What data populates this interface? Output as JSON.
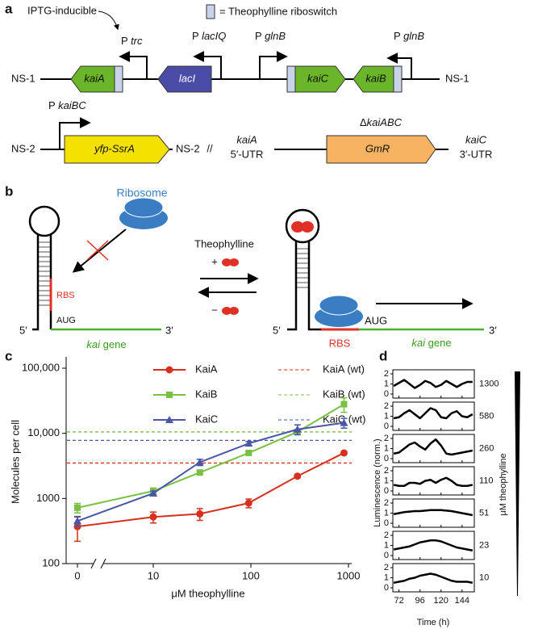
{
  "panel_labels": [
    "a",
    "b",
    "c",
    "d"
  ],
  "panel_a": {
    "iptg_note": "IPTG-inducible",
    "riboswitch_key": "= Theophylline riboswitch",
    "promoters": [
      {
        "prefix": "P",
        "name": "trc"
      },
      {
        "prefix": "P",
        "name": "lacIQ"
      },
      {
        "prefix": "P",
        "name": "glnB"
      },
      {
        "prefix": "P",
        "name": "glnB"
      },
      {
        "prefix": "P",
        "name": "kaiBC"
      }
    ],
    "genes": [
      "kaiA",
      "lacI",
      "kaiC",
      "kaiB",
      "yfp-SsrA",
      "GmR"
    ],
    "sites": [
      "NS-1",
      "NS-1",
      "NS-2",
      "NS-2"
    ],
    "break": "//",
    "deletion": {
      "prefix": "Δ",
      "name": "kaiABC"
    },
    "left_flank": {
      "gene": "kaiA",
      "utr": "5′-UTR"
    },
    "right_flank": {
      "gene": "kaiC",
      "utr": "3′-UTR"
    }
  },
  "panel_b": {
    "ribosome": "Ribosome",
    "ligand": "Theophylline",
    "plus": "+",
    "minus": "−",
    "left": {
      "rbs": "RBS",
      "start": "AUG",
      "five": "5′",
      "three": "3′",
      "gene": "kai",
      "gene_suffix": "gene"
    },
    "right": {
      "rbs": "RBS",
      "start": "AUG",
      "five": "5′",
      "three": "3′",
      "gene": "kai",
      "gene_suffix": "gene"
    }
  },
  "panel_d": {
    "y_label": "Luminescence (norm.)",
    "x_label": "Time (h)",
    "side_label": "μM theophylline"
  },
  "chart_data": [
    {
      "type": "line",
      "y_label": "Molecules per cell",
      "x_label": "μM theophylline",
      "xscale": "log",
      "yscale": "log",
      "x": [
        0,
        10,
        30,
        95,
        300,
        900
      ],
      "xlim": [
        0,
        1000
      ],
      "xticks": [
        0,
        10,
        100,
        1000
      ],
      "ylim": [
        100,
        100000
      ],
      "yticks": [
        100,
        1000,
        {
          "value": 10000,
          "label": "10,000"
        },
        {
          "value": 100000,
          "label": "100,000"
        }
      ],
      "series": [
        {
          "name": "KaiA",
          "color": "#d7301f",
          "marker": "circle",
          "values": [
            370,
            520,
            580,
            850,
            2200,
            5000
          ],
          "errors": [
            150,
            100,
            120,
            130,
            100,
            200
          ]
        },
        {
          "name": "KaiB",
          "color": "#7ac143",
          "marker": "square",
          "values": [
            720,
            1300,
            2500,
            5000,
            10500,
            28000
          ],
          "errors": [
            120,
            150,
            150,
            300,
            800,
            7000
          ]
        },
        {
          "name": "KaiC",
          "color": "#4a56a6",
          "marker": "triangle",
          "values": [
            450,
            1200,
            3600,
            7000,
            11500,
            14500
          ],
          "errors": [
            80,
            100,
            400,
            500,
            2000,
            2500
          ]
        }
      ],
      "reference_lines": [
        {
          "name": "KaiA (wt)",
          "color": "#d7301f",
          "value": 3500
        },
        {
          "name": "KaiB (wt)",
          "color": "#7ac143",
          "value": 10500
        },
        {
          "name": "KaiC (wt)",
          "color": "#4a56a6",
          "value": 7800
        }
      ]
    },
    {
      "type": "line",
      "label": "1300",
      "color": "#000000",
      "x": [
        66,
        72,
        78,
        84,
        90,
        96,
        102,
        108,
        114,
        120,
        126,
        132,
        138,
        144,
        150,
        156
      ],
      "values": [
        0.8,
        1.1,
        1.4,
        1.0,
        0.6,
        0.9,
        1.3,
        1.1,
        0.7,
        0.9,
        1.3,
        1.0,
        0.7,
        1.0,
        1.2,
        1.2
      ],
      "xlim": [
        65,
        158
      ],
      "xticks": [
        72,
        96,
        120,
        144
      ],
      "ylim": [
        -0.4,
        2.4
      ],
      "yticks": [
        0,
        1,
        2
      ]
    },
    {
      "type": "line",
      "label": "580",
      "color": "#000000",
      "x": [
        66,
        72,
        78,
        84,
        90,
        96,
        102,
        108,
        114,
        120,
        126,
        132,
        138,
        144,
        150,
        156
      ],
      "values": [
        0.8,
        0.9,
        1.3,
        1.6,
        1.2,
        0.8,
        1.3,
        1.8,
        1.6,
        0.9,
        0.8,
        1.3,
        1.5,
        1.0,
        0.9,
        1.2
      ],
      "xlim": [
        65,
        158
      ],
      "xticks": [
        72,
        96,
        120,
        144
      ],
      "ylim": [
        -0.4,
        2.4
      ],
      "yticks": [
        0,
        1,
        2
      ]
    },
    {
      "type": "line",
      "label": "260",
      "color": "#000000",
      "x": [
        66,
        72,
        78,
        84,
        90,
        96,
        102,
        108,
        114,
        120,
        126,
        132,
        138,
        144,
        150,
        156
      ],
      "values": [
        0.5,
        0.6,
        1.0,
        1.4,
        1.6,
        1.2,
        0.9,
        1.5,
        1.9,
        1.3,
        0.5,
        0.4,
        0.5,
        0.6,
        0.7,
        0.8
      ],
      "xlim": [
        65,
        158
      ],
      "xticks": [
        72,
        96,
        120,
        144
      ],
      "ylim": [
        -0.4,
        2.4
      ],
      "yticks": [
        0,
        1,
        2
      ]
    },
    {
      "type": "line",
      "label": "110",
      "color": "#000000",
      "x": [
        66,
        72,
        78,
        84,
        90,
        96,
        102,
        108,
        114,
        120,
        126,
        132,
        138,
        144,
        150,
        156
      ],
      "values": [
        0.6,
        0.5,
        0.5,
        0.8,
        0.8,
        0.7,
        1.0,
        1.1,
        0.8,
        1.1,
        1.3,
        1.0,
        0.6,
        0.5,
        0.5,
        0.6
      ],
      "xlim": [
        65,
        158
      ],
      "xticks": [
        72,
        96,
        120,
        144
      ],
      "ylim": [
        -0.4,
        2.4
      ],
      "yticks": [
        0,
        1,
        2
      ]
    },
    {
      "type": "line",
      "label": "51",
      "color": "#000000",
      "x": [
        66,
        72,
        78,
        84,
        90,
        96,
        102,
        108,
        114,
        120,
        126,
        132,
        138,
        144,
        150,
        156
      ],
      "values": [
        0.9,
        1.0,
        1.1,
        1.15,
        1.2,
        1.2,
        1.25,
        1.3,
        1.3,
        1.3,
        1.25,
        1.2,
        1.1,
        1.0,
        0.9,
        0.8
      ],
      "xlim": [
        65,
        158
      ],
      "xticks": [
        72,
        96,
        120,
        144
      ],
      "ylim": [
        -0.4,
        2.4
      ],
      "yticks": [
        0,
        1,
        2
      ]
    },
    {
      "type": "line",
      "label": "23",
      "color": "#000000",
      "x": [
        66,
        72,
        78,
        84,
        90,
        96,
        102,
        108,
        114,
        120,
        126,
        132,
        138,
        144,
        150,
        156
      ],
      "values": [
        0.6,
        0.7,
        0.8,
        0.9,
        1.1,
        1.3,
        1.4,
        1.5,
        1.5,
        1.4,
        1.2,
        1.0,
        0.8,
        0.7,
        0.6,
        0.5
      ],
      "xlim": [
        65,
        158
      ],
      "xticks": [
        72,
        96,
        120,
        144
      ],
      "ylim": [
        -0.4,
        2.4
      ],
      "yticks": [
        0,
        1,
        2
      ]
    },
    {
      "type": "line",
      "label": "10",
      "color": "#000000",
      "x": [
        66,
        72,
        78,
        84,
        90,
        96,
        102,
        108,
        114,
        120,
        126,
        132,
        138,
        144,
        150,
        156
      ],
      "values": [
        0.5,
        0.6,
        0.7,
        0.9,
        1.0,
        1.2,
        1.3,
        1.4,
        1.3,
        1.1,
        0.9,
        0.7,
        0.6,
        0.6,
        0.6,
        0.5
      ],
      "xlim": [
        65,
        158
      ],
      "xticks": [
        72,
        96,
        120,
        144
      ],
      "ylim": [
        -0.4,
        2.4
      ],
      "yticks": [
        0,
        1,
        2
      ]
    }
  ]
}
